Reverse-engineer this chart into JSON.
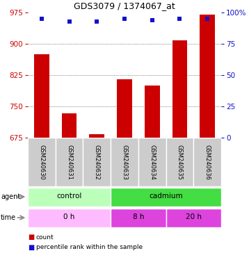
{
  "title": "GDS3079 / 1374067_at",
  "samples": [
    "GSM240630",
    "GSM240631",
    "GSM240632",
    "GSM240633",
    "GSM240634",
    "GSM240635",
    "GSM240636"
  ],
  "count_values": [
    875,
    733,
    683,
    815,
    800,
    908,
    970
  ],
  "percentile_values": [
    95,
    93,
    93,
    95,
    94,
    95,
    95
  ],
  "ylim_left": [
    675,
    975
  ],
  "ylim_right": [
    0,
    100
  ],
  "yticks_left": [
    675,
    750,
    825,
    900,
    975
  ],
  "yticks_right": [
    0,
    25,
    50,
    75,
    100
  ],
  "ytick_right_labels": [
    "0",
    "25",
    "50",
    "75",
    "100%"
  ],
  "bar_color": "#cc0000",
  "dot_color": "#1111cc",
  "bar_width": 0.55,
  "agent_groups": [
    {
      "label": "control",
      "start": 0,
      "end": 3,
      "color": "#bbffbb"
    },
    {
      "label": "cadmium",
      "start": 3,
      "end": 7,
      "color": "#44dd44"
    }
  ],
  "time_groups": [
    {
      "label": "0 h",
      "start": 0,
      "end": 3,
      "color": "#ffbbff"
    },
    {
      "label": "8 h",
      "start": 3,
      "end": 5,
      "color": "#dd44dd"
    },
    {
      "label": "20 h",
      "start": 5,
      "end": 7,
      "color": "#dd44dd"
    }
  ],
  "legend_count_color": "#cc0000",
  "legend_dot_color": "#1111cc",
  "left_tick_color": "#cc0000",
  "right_tick_color": "#1111cc",
  "grid_color": "#555555",
  "sample_bg_color": "#cccccc"
}
